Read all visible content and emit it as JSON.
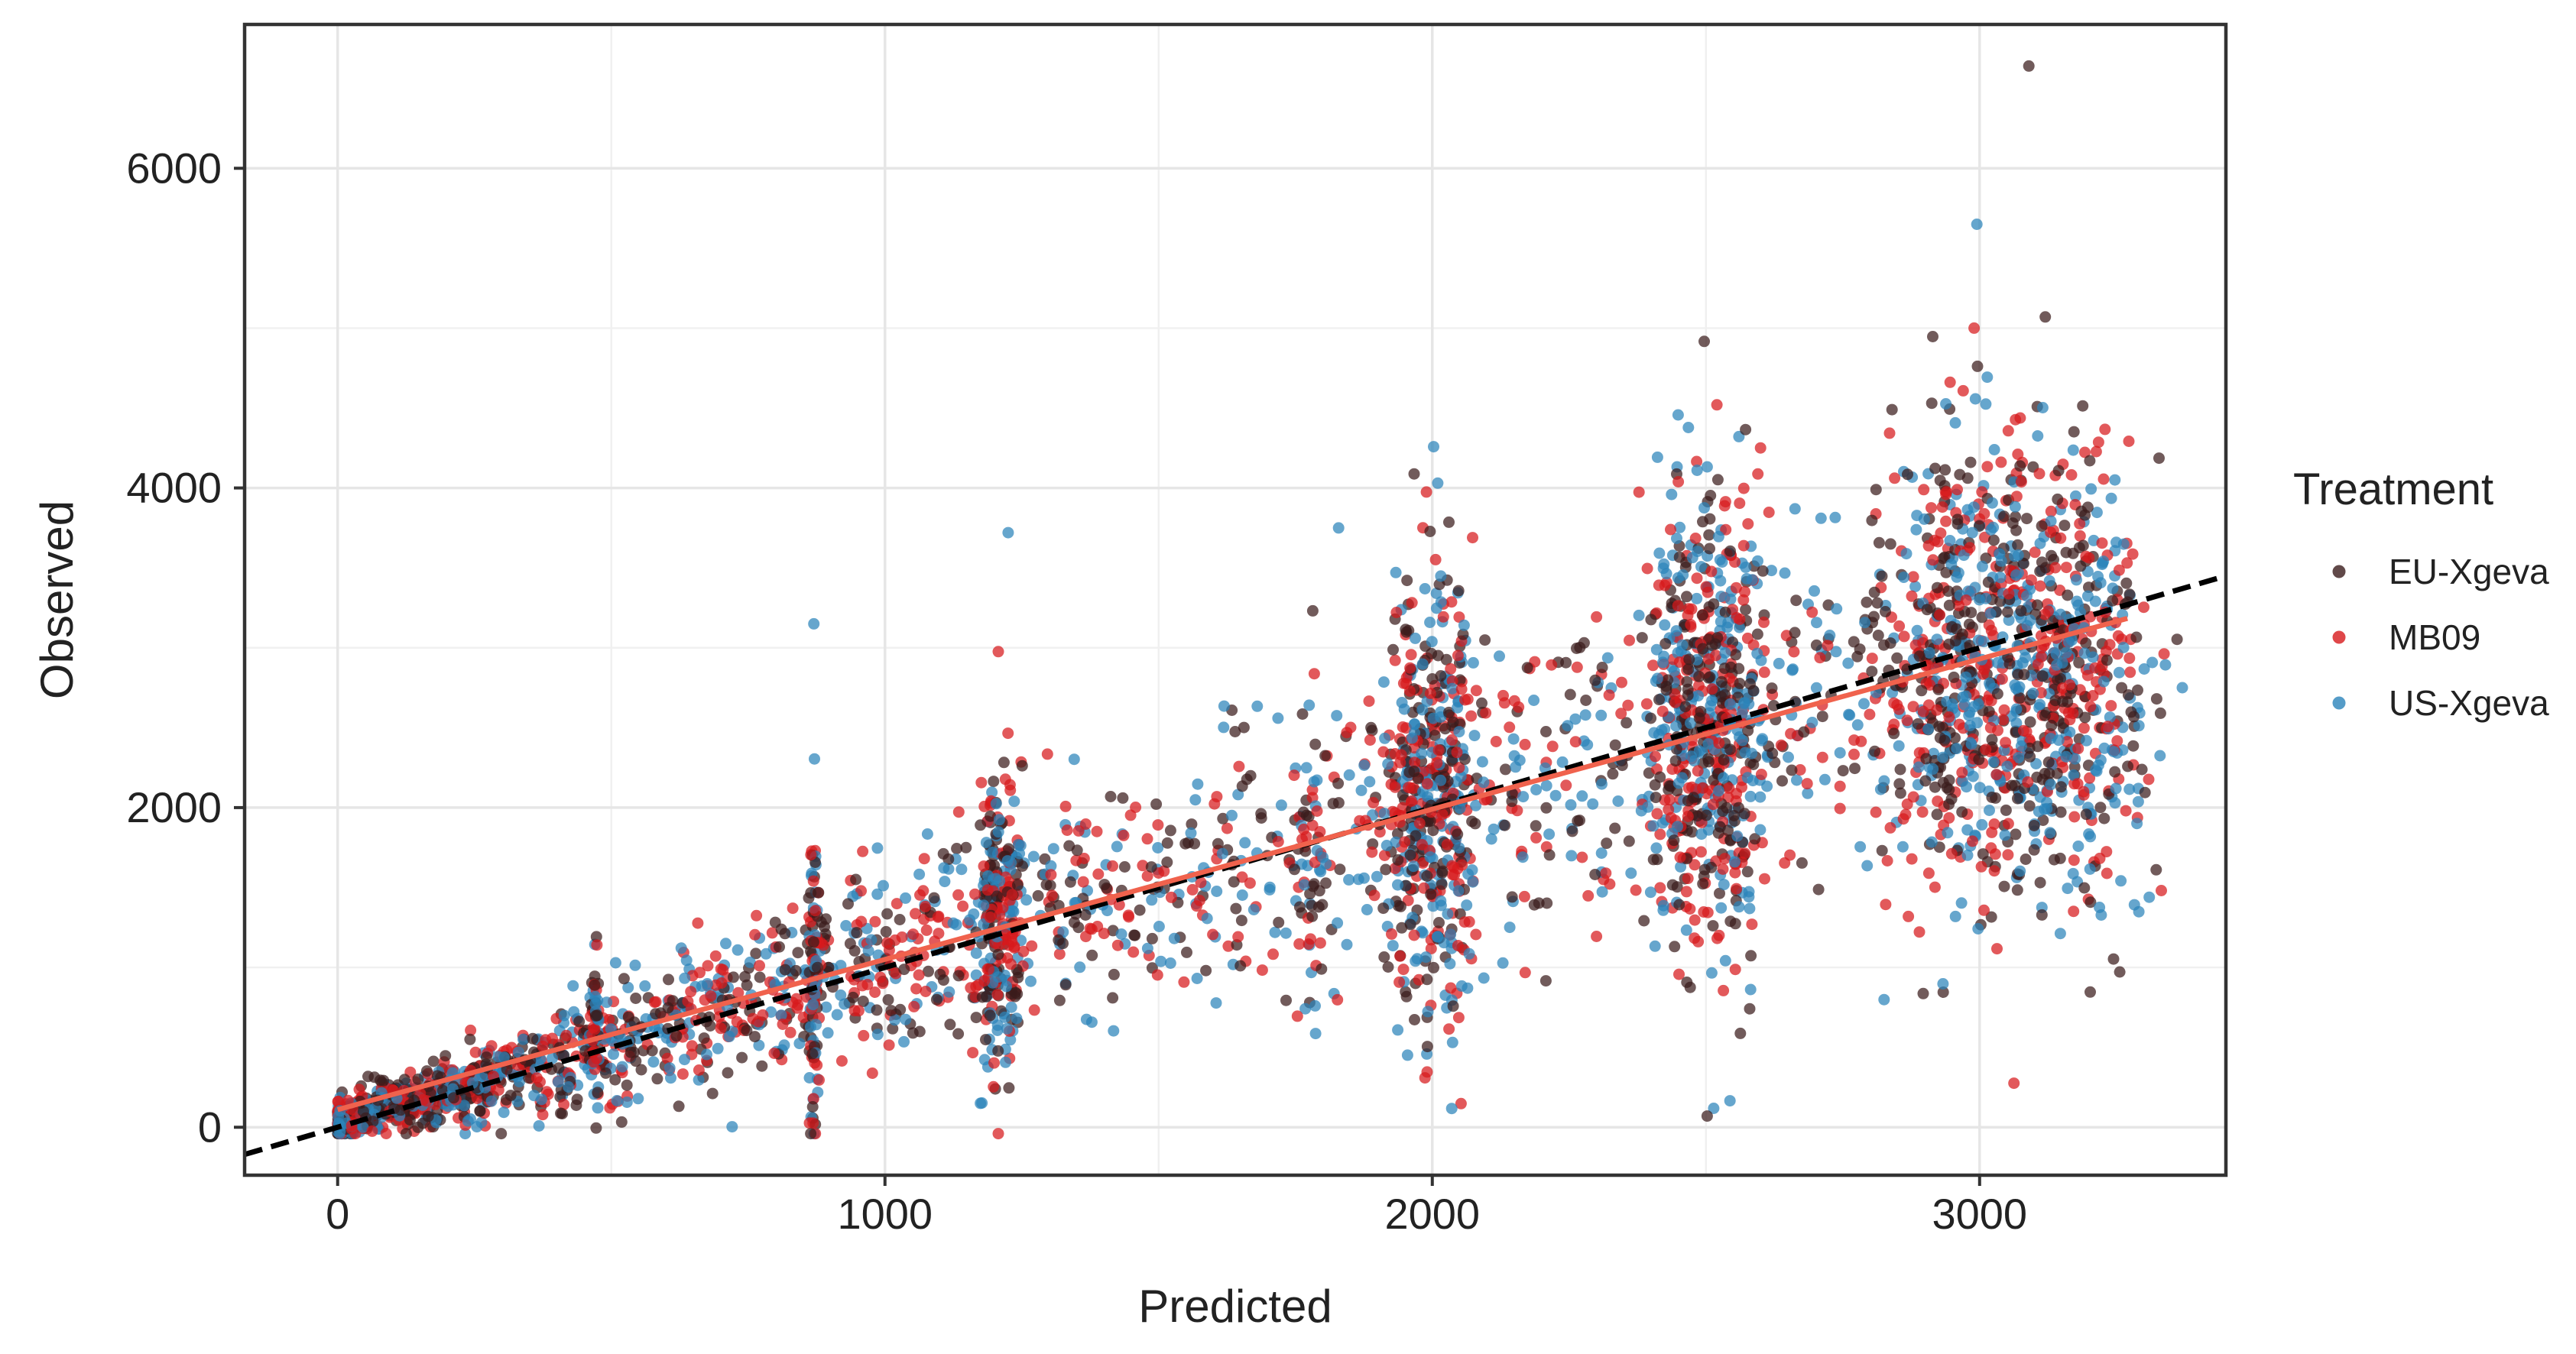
{
  "chart_data": {
    "type": "scatter",
    "title": "",
    "xlabel": "Predicted",
    "ylabel": "Observed",
    "xlim": [
      -170,
      3450
    ],
    "ylim": [
      -300,
      6900
    ],
    "x_ticks": [
      0,
      1000,
      2000,
      3000
    ],
    "x_tick_labels": [
      "0",
      "1000",
      "2000",
      "3000"
    ],
    "y_ticks": [
      0,
      2000,
      4000,
      6000
    ],
    "y_tick_labels": [
      "0",
      "2000",
      "4000",
      "6000"
    ],
    "grid": true,
    "legend": {
      "title": "Treatment",
      "placement": "right",
      "entries": [
        "EU-Xgeva",
        "MB09",
        "US-Xgeva"
      ]
    },
    "series": [
      {
        "name": "EU-Xgeva",
        "color": "#3a1c1c",
        "points_approx": 1800
      },
      {
        "name": "MB09",
        "color": "#d7191c",
        "points_approx": 1800
      },
      {
        "name": "US-Xgeva",
        "color": "#2b83ba",
        "points_approx": 1800
      }
    ],
    "reference_line": {
      "type": "identity",
      "style": "dashed",
      "color": "#000000",
      "x_range": [
        -170,
        3450
      ]
    },
    "fit_line": {
      "type": "linear",
      "color": "#f0624d",
      "intercept": 110,
      "slope": 0.94,
      "x_range": [
        0,
        3270
      ]
    },
    "notable_points": [
      {
        "x": 3090,
        "y": 6640,
        "series": "EU-Xgeva"
      },
      {
        "x": 2995,
        "y": 5650,
        "series": "US-Xgeva"
      },
      {
        "x": 3120,
        "y": 5070,
        "series": "EU-Xgeva"
      },
      {
        "x": 2990,
        "y": 5000,
        "series": "MB09"
      },
      {
        "x": 1225,
        "y": 3720,
        "series": "US-Xgeva"
      },
      {
        "x": 870,
        "y": 3150,
        "series": "US-Xgeva"
      },
      {
        "x": 2520,
        "y": 4520,
        "series": "MB09"
      },
      {
        "x": 2010,
        "y": 4030,
        "series": "US-Xgeva"
      },
      {
        "x": 2840,
        "y": 4490,
        "series": "EU-Xgeva"
      }
    ]
  }
}
